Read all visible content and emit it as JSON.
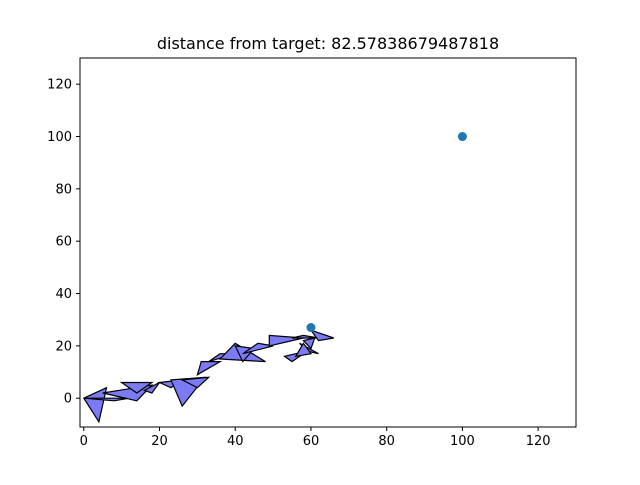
{
  "chart_data": {
    "type": "scatter",
    "title": "distance from target: 82.57838679487818",
    "xlabel": "",
    "ylabel": "",
    "xlim": [
      -1,
      130
    ],
    "ylim": [
      -11,
      130
    ],
    "xticks": [
      0,
      20,
      40,
      60,
      80,
      100,
      120
    ],
    "yticks": [
      0,
      20,
      40,
      60,
      80,
      100,
      120
    ],
    "grid": false,
    "points": [
      {
        "x": 100,
        "y": 100
      },
      {
        "x": 60,
        "y": 27
      }
    ],
    "point_color": "#1f77b4",
    "triangles": [
      [
        [
          0,
          0
        ],
        [
          6,
          4
        ],
        [
          4,
          -9
        ]
      ],
      [
        [
          0,
          0
        ],
        [
          12,
          0
        ],
        [
          8,
          -1
        ]
      ],
      [
        [
          5,
          2
        ],
        [
          14,
          -1
        ],
        [
          18,
          5
        ]
      ],
      [
        [
          10,
          6
        ],
        [
          18,
          6
        ],
        [
          14,
          2
        ]
      ],
      [
        [
          16,
          3
        ],
        [
          20,
          6
        ],
        [
          18,
          2
        ]
      ],
      [
        [
          20,
          6
        ],
        [
          26,
          7
        ],
        [
          23,
          4
        ]
      ],
      [
        [
          23,
          7
        ],
        [
          26,
          -3
        ],
        [
          32,
          8
        ]
      ],
      [
        [
          26,
          7
        ],
        [
          33,
          8
        ],
        [
          30,
          4
        ]
      ],
      [
        [
          30,
          9
        ],
        [
          36,
          14
        ],
        [
          31,
          14
        ]
      ],
      [
        [
          33,
          14
        ],
        [
          40,
          17
        ],
        [
          36,
          17
        ]
      ],
      [
        [
          36,
          15
        ],
        [
          48,
          14
        ],
        [
          40,
          21
        ]
      ],
      [
        [
          40,
          20
        ],
        [
          45,
          19
        ],
        [
          42,
          14
        ]
      ],
      [
        [
          42,
          17
        ],
        [
          50,
          20
        ],
        [
          46,
          21
        ]
      ],
      [
        [
          49,
          20
        ],
        [
          58,
          23
        ],
        [
          49,
          24
        ]
      ],
      [
        [
          55,
          23
        ],
        [
          62,
          23
        ],
        [
          58,
          24
        ]
      ],
      [
        [
          58,
          22
        ],
        [
          61,
          23
        ],
        [
          60,
          19
        ]
      ],
      [
        [
          60,
          26
        ],
        [
          66,
          23
        ],
        [
          62,
          22
        ]
      ],
      [
        [
          57,
          21
        ],
        [
          59,
          18
        ],
        [
          62,
          17
        ]
      ],
      [
        [
          53,
          16
        ],
        [
          59,
          18
        ],
        [
          55,
          14
        ]
      ],
      [
        [
          56,
          16
        ],
        [
          60,
          17
        ],
        [
          58,
          21
        ]
      ]
    ],
    "triangle_fill": "#7b7bf5",
    "triangle_stroke": "#000000"
  }
}
